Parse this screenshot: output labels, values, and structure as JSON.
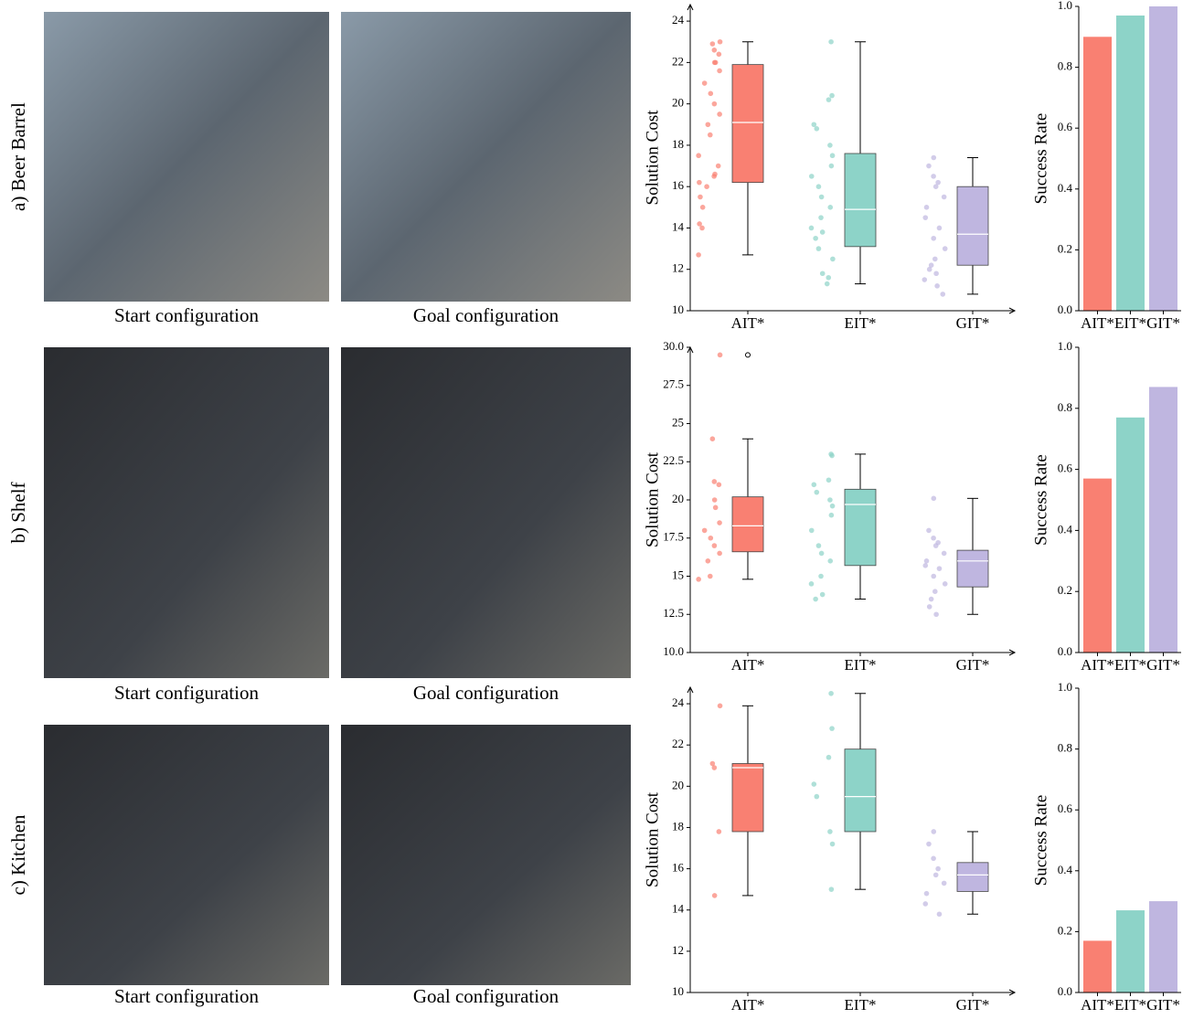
{
  "panels": [
    {
      "label": "a) Beer Barrel",
      "captions": [
        "Start configuration",
        "Goal configuration"
      ]
    },
    {
      "label": "b) Shelf",
      "captions": [
        "Start configuration",
        "Goal configuration"
      ]
    },
    {
      "label": "c) Kitchen",
      "captions": [
        "Start configuration",
        "Goal configuration"
      ]
    }
  ],
  "chart_data": [
    {
      "type": "box",
      "ylabel": "Solution Cost",
      "categories": [
        "AIT*",
        "EIT*",
        "GIT*"
      ],
      "colors": [
        "#f98072",
        "#8dd3c8",
        "#bfb6e0"
      ],
      "ylim": [
        10,
        24.8
      ],
      "yticks": [
        10,
        12,
        14,
        16,
        18,
        20,
        22,
        24
      ],
      "stats": [
        {
          "min": 12.7,
          "q1": 16.2,
          "median": 19.1,
          "q3": 21.9,
          "max": 23.0,
          "outliers": [],
          "points": [
            23.0,
            22.9,
            22.6,
            22.4,
            22.0,
            22.0,
            21.6,
            21.0,
            20.5,
            20.0,
            19.5,
            19.0,
            18.5,
            17.5,
            17.0,
            16.6,
            16.5,
            16.2,
            16.0,
            15.5,
            15.0,
            14.2,
            14.0,
            12.7
          ]
        },
        {
          "min": 11.3,
          "q1": 13.1,
          "median": 14.9,
          "q3": 17.6,
          "max": 23.0,
          "outliers": [],
          "points": [
            23.0,
            20.4,
            20.2,
            19.0,
            18.8,
            18.0,
            17.5,
            17.0,
            16.5,
            16.0,
            15.5,
            15.0,
            14.5,
            14.0,
            13.8,
            13.5,
            13.0,
            12.5,
            11.8,
            11.6,
            11.3
          ]
        },
        {
          "min": 10.8,
          "q1": 12.2,
          "median": 13.7,
          "q3": 16.0,
          "max": 17.4,
          "outliers": [],
          "points": [
            17.4,
            17.0,
            16.5,
            16.2,
            16.0,
            15.5,
            15.0,
            14.5,
            14.0,
            13.5,
            13.0,
            12.5,
            12.2,
            12.0,
            11.8,
            11.5,
            11.2,
            10.8
          ]
        }
      ]
    },
    {
      "type": "bar",
      "ylabel": "Success Rate",
      "categories": [
        "AIT*",
        "EIT*",
        "GIT*"
      ],
      "colors": [
        "#f98072",
        "#8dd3c8",
        "#bfb6e0"
      ],
      "values": [
        0.9,
        0.97,
        1.0
      ],
      "ylim": [
        0,
        1.0
      ],
      "yticks": [
        {
          "value": 0,
          "label": "0.0"
        },
        0.2,
        0.4,
        0.6,
        0.8,
        {
          "value": 1.0,
          "label": "1.0"
        }
      ]
    },
    {
      "type": "box",
      "ylabel": "Solution Cost",
      "categories": [
        "AIT*",
        "EIT*",
        "GIT*"
      ],
      "colors": [
        "#f98072",
        "#8dd3c8",
        "#bfb6e0"
      ],
      "ylim": [
        10,
        30
      ],
      "yticks": [
        {
          "value": 10,
          "label": "10.0"
        },
        12.5,
        15.0,
        17.5,
        20.0,
        22.5,
        25.0,
        27.5,
        {
          "value": 30,
          "label": "30.0"
        }
      ],
      "stats": [
        {
          "min": 14.8,
          "q1": 16.6,
          "median": 18.3,
          "q3": 20.2,
          "max": 24.0,
          "outliers": [
            29.5
          ],
          "points": [
            29.5,
            24.0,
            21.2,
            21.0,
            20.0,
            19.5,
            18.5,
            18.0,
            17.5,
            17.0,
            16.5,
            16.0,
            15.0,
            14.8
          ]
        },
        {
          "min": 13.5,
          "q1": 15.7,
          "median": 19.7,
          "q3": 20.7,
          "max": 23.0,
          "outliers": [],
          "points": [
            23.0,
            22.9,
            21.3,
            21.0,
            20.5,
            20.0,
            19.6,
            19.0,
            18.0,
            17.0,
            16.5,
            16.0,
            15.0,
            14.5,
            13.8,
            13.5
          ]
        },
        {
          "min": 12.5,
          "q1": 14.3,
          "median": 16.0,
          "q3": 16.7,
          "max": 20.1,
          "outliers": [],
          "points": [
            20.1,
            18.0,
            17.5,
            17.2,
            17.0,
            16.5,
            16.0,
            15.7,
            15.5,
            15.0,
            14.5,
            14.0,
            13.5,
            13.0,
            12.5
          ]
        }
      ]
    },
    {
      "type": "bar",
      "ylabel": "Success Rate",
      "categories": [
        "AIT*",
        "EIT*",
        "GIT*"
      ],
      "colors": [
        "#f98072",
        "#8dd3c8",
        "#bfb6e0"
      ],
      "values": [
        0.57,
        0.77,
        0.87
      ],
      "ylim": [
        0,
        1.0
      ],
      "yticks": [
        {
          "value": 0,
          "label": "0.0"
        },
        0.2,
        0.4,
        0.6,
        0.8,
        {
          "value": 1.0,
          "label": "1.0"
        }
      ]
    },
    {
      "type": "box",
      "ylabel": "Solution Cost",
      "categories": [
        "AIT*",
        "EIT*",
        "GIT*"
      ],
      "colors": [
        "#f98072",
        "#8dd3c8",
        "#bfb6e0"
      ],
      "ylim": [
        10,
        24.8
      ],
      "yticks": [
        10,
        12,
        14,
        16,
        18,
        20,
        22,
        24
      ],
      "stats": [
        {
          "min": 14.7,
          "q1": 17.8,
          "median": 20.9,
          "q3": 21.1,
          "max": 23.9,
          "outliers": [],
          "points": [
            23.9,
            21.1,
            20.9,
            17.8,
            14.7
          ]
        },
        {
          "min": 15.0,
          "q1": 17.8,
          "median": 19.5,
          "q3": 21.8,
          "max": 24.5,
          "outliers": [],
          "points": [
            24.5,
            22.8,
            21.4,
            20.1,
            19.5,
            17.8,
            17.2,
            15.0
          ]
        },
        {
          "min": 13.8,
          "q1": 14.9,
          "median": 15.7,
          "q3": 16.3,
          "max": 17.8,
          "outliers": [],
          "points": [
            17.8,
            17.2,
            16.5,
            16.0,
            15.7,
            15.3,
            14.8,
            14.3,
            13.8
          ]
        }
      ]
    },
    {
      "type": "bar",
      "ylabel": "Success Rate",
      "categories": [
        "AIT*",
        "EIT*",
        "GIT*"
      ],
      "colors": [
        "#f98072",
        "#8dd3c8",
        "#bfb6e0"
      ],
      "values": [
        0.17,
        0.27,
        0.3
      ],
      "ylim": [
        0,
        1.0
      ],
      "yticks": [
        {
          "value": 0,
          "label": "0.0"
        },
        0.2,
        0.4,
        0.6,
        0.8,
        {
          "value": 1.0,
          "label": "1.0"
        }
      ]
    }
  ]
}
